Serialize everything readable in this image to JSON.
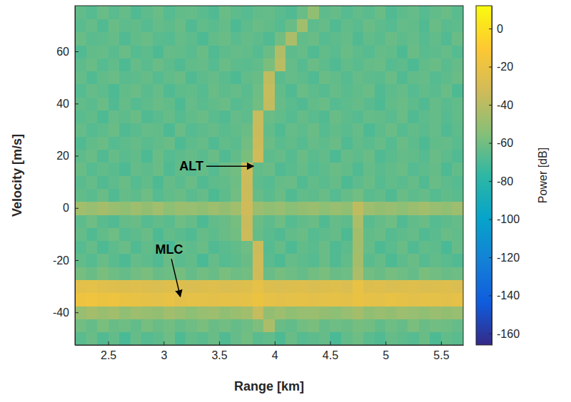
{
  "chart_data": {
    "type": "heatmap",
    "xlabel": "Range [km]",
    "ylabel": "Velocity [m/s]",
    "colorbar_label": "Power [dB]",
    "xlim": [
      2.2,
      5.7
    ],
    "ylim": [
      -52.5,
      77.5
    ],
    "xticks": [
      2.5,
      3,
      3.5,
      4,
      4.5,
      5,
      5.5
    ],
    "yticks": [
      -40,
      -20,
      0,
      20,
      40,
      60
    ],
    "zlim": [
      -166,
      12
    ],
    "zticks": [
      0,
      -20,
      -40,
      -60,
      -80,
      -100,
      -120,
      -140,
      -160
    ],
    "x": [
      2.25,
      2.35,
      2.45,
      2.55,
      2.65,
      2.75,
      2.85,
      2.95,
      3.05,
      3.15,
      3.25,
      3.35,
      3.45,
      3.55,
      3.65,
      3.75,
      3.85,
      3.95,
      4.05,
      4.15,
      4.25,
      4.35,
      4.45,
      4.55,
      4.65,
      4.75,
      4.85,
      4.95,
      5.05,
      5.15,
      5.25,
      5.35,
      5.45,
      5.55,
      5.65
    ],
    "y": [
      -50,
      -45,
      -40,
      -35,
      -30,
      -25,
      -20,
      -15,
      -10,
      -5,
      0,
      5,
      10,
      15,
      20,
      25,
      30,
      35,
      40,
      45,
      50,
      55,
      60,
      65,
      70,
      75
    ],
    "values": [
      [
        -66,
        -62,
        -68,
        -64,
        -70,
        -63,
        -67,
        -65,
        -61,
        -69,
        -64,
        -66,
        -62,
        -68,
        -63,
        -60,
        -66,
        -64,
        -69,
        -62,
        -67,
        -65,
        -63,
        -70,
        -64,
        -61,
        -66,
        -68,
        -63,
        -65,
        -67,
        -62,
        -69,
        -64,
        -66
      ],
      [
        -60,
        -63,
        -58,
        -62,
        -61,
        -64,
        -59,
        -62,
        -60,
        -63,
        -61,
        -58,
        -62,
        -60,
        -63,
        -61,
        -57,
        -44,
        -62,
        -64,
        -60,
        -58,
        -63,
        -61,
        -62,
        -59,
        -60,
        -64,
        -61,
        -63,
        -58,
        -62,
        -60,
        -61,
        -63
      ],
      [
        -50,
        -46,
        -49,
        -47,
        -52,
        -48,
        -50,
        -51,
        -47,
        -49,
        -53,
        -50,
        -48,
        -52,
        -49,
        -47,
        -36,
        -51,
        -48,
        -52,
        -50,
        -49,
        -51,
        -53,
        -50,
        -46,
        -52,
        -49,
        -51,
        -48,
        -50,
        -52,
        -49,
        -51,
        -50
      ],
      [
        -18,
        -17,
        -19,
        -18,
        -20,
        -21,
        -22,
        -23,
        -21,
        -24,
        -22,
        -23,
        -24,
        -22,
        -23,
        -22,
        -19,
        -22,
        -24,
        -23,
        -22,
        -24,
        -23,
        -22,
        -24,
        -20,
        -22,
        -23,
        -21,
        -22,
        -24,
        -22,
        -23,
        -24,
        -22
      ],
      [
        -24,
        -23,
        -25,
        -26,
        -27,
        -26,
        -27,
        -28,
        -26,
        -27,
        -28,
        -27,
        -26,
        -28,
        -27,
        -26,
        -22,
        -27,
        -28,
        -27,
        -26,
        -28,
        -27,
        -26,
        -28,
        -21,
        -27,
        -26,
        -28,
        -27,
        -26,
        -28,
        -27,
        -26,
        -28
      ],
      [
        -59,
        -62,
        -58,
        -61,
        -63,
        -60,
        -58,
        -62,
        -61,
        -59,
        -63,
        -60,
        -62,
        -58,
        -61,
        -60,
        -33,
        -62,
        -59,
        -61,
        -63,
        -60,
        -58,
        -62,
        -61,
        -44,
        -60,
        -62,
        -59,
        -61,
        -63,
        -58,
        -60,
        -62,
        -61
      ],
      [
        -64,
        -67,
        -62,
        -66,
        -69,
        -63,
        -65,
        -68,
        -62,
        -66,
        -64,
        -70,
        -63,
        -67,
        -65,
        -62,
        -33,
        -66,
        -69,
        -63,
        -65,
        -67,
        -62,
        -68,
        -64,
        -46,
        -66,
        -63,
        -69,
        -65,
        -62,
        -67,
        -64,
        -66,
        -68
      ],
      [
        -67,
        -63,
        -69,
        -65,
        -62,
        -68,
        -64,
        -66,
        -70,
        -63,
        -65,
        -62,
        -68,
        -66,
        -64,
        -61,
        -34,
        -67,
        -63,
        -69,
        -64,
        -66,
        -62,
        -68,
        -65,
        -47,
        -63,
        -69,
        -66,
        -62,
        -68,
        -64,
        -65,
        -70,
        -63
      ],
      [
        -63,
        -68,
        -64,
        -61,
        -67,
        -65,
        -62,
        -69,
        -64,
        -66,
        -68,
        -63,
        -65,
        -62,
        -60,
        -34,
        -63,
        -66,
        -68,
        -64,
        -62,
        -67,
        -65,
        -63,
        -69,
        -46,
        -64,
        -62,
        -67,
        -65,
        -63,
        -68,
        -66,
        -62,
        -64
      ],
      [
        -65,
        -61,
        -66,
        -68,
        -63,
        -62,
        -67,
        -64,
        -66,
        -61,
        -63,
        -69,
        -64,
        -62,
        -59,
        -35,
        -62,
        -65,
        -61,
        -67,
        -64,
        -62,
        -68,
        -63,
        -65,
        -44,
        -66,
        -63,
        -61,
        -68,
        -64,
        -62,
        -67,
        -65,
        -63
      ],
      [
        -47,
        -50,
        -46,
        -49,
        -52,
        -48,
        -51,
        -47,
        -53,
        -49,
        -50,
        -52,
        -48,
        -51,
        -47,
        -33,
        -49,
        -52,
        -50,
        -54,
        -51,
        -49,
        -53,
        -50,
        -52,
        -38,
        -48,
        -51,
        -50,
        -53,
        -49,
        -47,
        -50,
        -52,
        -48
      ],
      [
        -64,
        -66,
        -62,
        -68,
        -63,
        -65,
        -61,
        -67,
        -64,
        -62,
        -66,
        -63,
        -69,
        -65,
        -60,
        -34,
        -63,
        -66,
        -62,
        -68,
        -64,
        -65,
        -62,
        -67,
        -63,
        -60,
        -66,
        -64,
        -68,
        -62,
        -65,
        -63,
        -67,
        -64,
        -66
      ],
      [
        -66,
        -63,
        -68,
        -65,
        -62,
        -67,
        -64,
        -69,
        -63,
        -66,
        -62,
        -68,
        -65,
        -64,
        -61,
        -34,
        -65,
        -67,
        -63,
        -62,
        -68,
        -64,
        -66,
        -63,
        -69,
        -65,
        -62,
        -67,
        -64,
        -66,
        -63,
        -68,
        -62,
        -65,
        -67
      ],
      [
        -62,
        -67,
        -64,
        -66,
        -69,
        -63,
        -65,
        -62,
        -68,
        -64,
        -66,
        -63,
        -67,
        -62,
        -60,
        -33,
        -64,
        -62,
        -68,
        -66,
        -63,
        -67,
        -65,
        -62,
        -64,
        -68,
        -63,
        -66,
        -64,
        -62,
        -67,
        -65,
        -63,
        -69,
        -64
      ],
      [
        -65,
        -62,
        -68,
        -63,
        -66,
        -64,
        -69,
        -62,
        -67,
        -65,
        -63,
        -66,
        -62,
        -68,
        -64,
        -58,
        -33,
        -65,
        -63,
        -67,
        -62,
        -66,
        -64,
        -69,
        -63,
        -65,
        -62,
        -68,
        -66,
        -63,
        -64,
        -67,
        -62,
        -65,
        -68
      ],
      [
        -68,
        -64,
        -62,
        -67,
        -65,
        -63,
        -66,
        -64,
        -62,
        -69,
        -65,
        -63,
        -68,
        -64,
        -66,
        -60,
        -34,
        -62,
        -66,
        -64,
        -67,
        -63,
        -65,
        -62,
        -68,
        -64,
        -66,
        -63,
        -67,
        -62,
        -65,
        -69,
        -64,
        -63,
        -66
      ],
      [
        -63,
        -67,
        -65,
        -62,
        -68,
        -66,
        -63,
        -64,
        -69,
        -62,
        -67,
        -65,
        -63,
        -66,
        -64,
        -62,
        -35,
        -64,
        -68,
        -63,
        -65,
        -62,
        -67,
        -64,
        -66,
        -63,
        -69,
        -65,
        -62,
        -67,
        -64,
        -66,
        -63,
        -68,
        -65
      ],
      [
        -66,
        -64,
        -69,
        -63,
        -65,
        -62,
        -68,
        -66,
        -63,
        -67,
        -64,
        -62,
        -66,
        -68,
        -63,
        -65,
        -36,
        -62,
        -64,
        -67,
        -63,
        -66,
        -68,
        -62,
        -65,
        -67,
        -63,
        -64,
        -66,
        -62,
        -68,
        -65,
        -63,
        -67,
        -64
      ],
      [
        -64,
        -66,
        -62,
        -68,
        -63,
        -67,
        -65,
        -62,
        -64,
        -69,
        -63,
        -66,
        -64,
        -62,
        -67,
        -65,
        -60,
        -37,
        -63,
        -66,
        -68,
        -64,
        -62,
        -67,
        -65,
        -63,
        -66,
        -69,
        -64,
        -62,
        -65,
        -68,
        -63,
        -66,
        -64
      ],
      [
        -67,
        -63,
        -65,
        -69,
        -64,
        -62,
        -66,
        -63,
        -68,
        -65,
        -64,
        -67,
        -62,
        -65,
        -63,
        -66,
        -61,
        -36,
        -64,
        -68,
        -62,
        -65,
        -67,
        -63,
        -66,
        -64,
        -62,
        -68,
        -65,
        -63,
        -67,
        -64,
        -66,
        -62,
        -69
      ],
      [
        -63,
        -68,
        -64,
        -62,
        -66,
        -65,
        -63,
        -67,
        -64,
        -62,
        -68,
        -65,
        -63,
        -66,
        -69,
        -64,
        -62,
        -38,
        -66,
        -63,
        -65,
        -68,
        -62,
        -64,
        -67,
        -63,
        -65,
        -66,
        -62,
        -68,
        -64,
        -63,
        -67,
        -65,
        -62
      ],
      [
        -65,
        -62,
        -67,
        -64,
        -69,
        -63,
        -66,
        -62,
        -65,
        -68,
        -64,
        -63,
        -67,
        -62,
        -65,
        -66,
        -64,
        -58,
        -40,
        -63,
        -67,
        -62,
        -65,
        -68,
        -64,
        -66,
        -63,
        -62,
        -67,
        -65,
        -69,
        -64,
        -62,
        -66,
        -63
      ],
      [
        -68,
        -64,
        -63,
        -66,
        -62,
        -67,
        -65,
        -69,
        -63,
        -64,
        -66,
        -62,
        -68,
        -65,
        -63,
        -64,
        -67,
        -62,
        -42,
        -65,
        -63,
        -68,
        -64,
        -66,
        -62,
        -65,
        -67,
        -63,
        -64,
        -69,
        -62,
        -66,
        -65,
        -63,
        -67
      ],
      [
        -62,
        -66,
        -65,
        -63,
        -68,
        -64,
        -62,
        -66,
        -67,
        -63,
        -65,
        -69,
        -64,
        -62,
        -66,
        -63,
        -65,
        -68,
        -60,
        -44,
        -64,
        -62,
        -67,
        -65,
        -63,
        -68,
        -64,
        -66,
        -62,
        -65,
        -63,
        -67,
        -64,
        -68,
        -62
      ],
      [
        -66,
        -63,
        -68,
        -62,
        -65,
        -64,
        -67,
        -63,
        -65,
        -62,
        -68,
        -64,
        -66,
        -63,
        -69,
        -65,
        -62,
        -64,
        -67,
        -62,
        -47,
        -65,
        -63,
        -68,
        -64,
        -66,
        -62,
        -65,
        -67,
        -63,
        -64,
        -68,
        -62,
        -66,
        -65
      ],
      [
        -64,
        -67,
        -62,
        -66,
        -63,
        -68,
        -65,
        -62,
        -67,
        -64,
        -63,
        -66,
        -68,
        -62,
        -65,
        -67,
        -64,
        -63,
        -66,
        -68,
        -62,
        -52,
        -65,
        -63,
        -67,
        -64,
        -66,
        -62,
        -68,
        -65,
        -63,
        -67,
        -64,
        -62,
        -66
      ]
    ],
    "annotations": [
      {
        "text": "ALT",
        "x": 3.81,
        "y": 16,
        "text_x": 3.25,
        "text_y": 16
      },
      {
        "text": "MLC",
        "x": 3.15,
        "y": -34,
        "text_x": 3.05,
        "text_y": -16
      }
    ]
  }
}
